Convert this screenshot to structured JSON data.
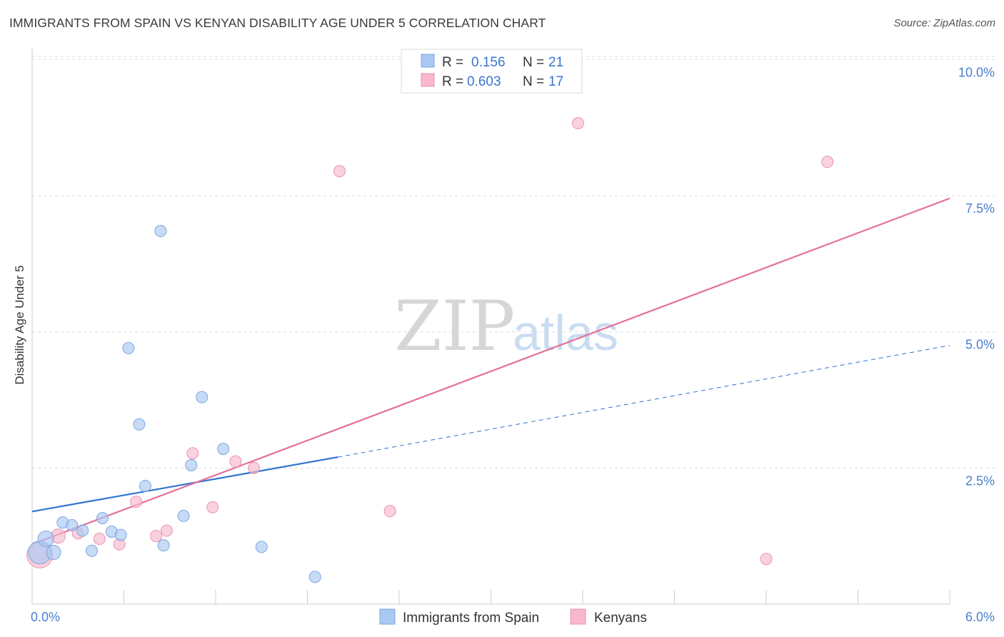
{
  "header": {
    "title": "IMMIGRANTS FROM SPAIN VS KENYAN DISABILITY AGE UNDER 5 CORRELATION CHART",
    "source": "Source: ZipAtlas.com"
  },
  "watermark": {
    "zip": "ZIP",
    "atlas": "atlas"
  },
  "stats": [
    {
      "r_label": "R =",
      "r_value": "0.156",
      "n_label": "N =",
      "n_value": "21",
      "color": "#a9c8f2"
    },
    {
      "r_label": "R =",
      "r_value": "0.603",
      "n_label": "N =",
      "n_value": "17",
      "color": "#f7b8cc"
    }
  ],
  "legend": [
    {
      "label": "Immigrants from Spain",
      "color": "#a9c8f2"
    },
    {
      "label": "Kenyans",
      "color": "#f7b8cc"
    }
  ],
  "colors": {
    "blue_fill": "#a9c8f2",
    "blue_stroke": "#7ea6de",
    "blue_line": "#2f74d0",
    "pink_fill": "#f7b8cc",
    "pink_stroke": "#eb94b0",
    "pink_line": "#e56f9a",
    "axis_text": "#4a7fd1",
    "grid": "#dddddd"
  },
  "chart_data": {
    "type": "scatter",
    "title": "IMMIGRANTS FROM SPAIN VS KENYAN DISABILITY AGE UNDER 5 CORRELATION CHART",
    "xlabel": "",
    "ylabel": "Disability Age Under 5",
    "xlim": [
      0,
      6.0
    ],
    "ylim": [
      0,
      10.2
    ],
    "x_tick_labels": [
      "0.0%",
      "6.0%"
    ],
    "y_ticks": [
      2.5,
      5.0,
      7.5,
      10.0
    ],
    "y_tick_labels": [
      "2.5%",
      "5.0%",
      "7.5%",
      "10.0%"
    ],
    "grid": true,
    "legend_position": "bottom",
    "series": [
      {
        "name": "Immigrants from Spain",
        "points": [
          {
            "x": 0.05,
            "y": 0.95,
            "size": 16
          },
          {
            "x": 0.09,
            "y": 1.2,
            "size": 11
          },
          {
            "x": 0.14,
            "y": 0.95,
            "size": 10
          },
          {
            "x": 0.2,
            "y": 1.5,
            "size": 8
          },
          {
            "x": 0.26,
            "y": 1.45,
            "size": 8
          },
          {
            "x": 0.33,
            "y": 1.35,
            "size": 8
          },
          {
            "x": 0.39,
            "y": 0.98,
            "size": 8
          },
          {
            "x": 0.46,
            "y": 1.58,
            "size": 8
          },
          {
            "x": 0.52,
            "y": 1.33,
            "size": 8
          },
          {
            "x": 0.58,
            "y": 1.27,
            "size": 8
          },
          {
            "x": 0.63,
            "y": 4.7,
            "size": 8
          },
          {
            "x": 0.7,
            "y": 3.3,
            "size": 8
          },
          {
            "x": 0.74,
            "y": 2.17,
            "size": 8
          },
          {
            "x": 0.84,
            "y": 6.85,
            "size": 8
          },
          {
            "x": 0.86,
            "y": 1.08,
            "size": 8
          },
          {
            "x": 0.99,
            "y": 1.62,
            "size": 8
          },
          {
            "x": 1.04,
            "y": 2.55,
            "size": 8
          },
          {
            "x": 1.11,
            "y": 3.8,
            "size": 8
          },
          {
            "x": 1.25,
            "y": 2.85,
            "size": 8
          },
          {
            "x": 1.5,
            "y": 1.05,
            "size": 8
          },
          {
            "x": 1.85,
            "y": 0.5,
            "size": 8
          }
        ],
        "trend": {
          "x": [
            0.0,
            2.0
          ],
          "y": [
            1.7,
            2.7
          ],
          "style": "solid"
        },
        "trend_extension": {
          "x": [
            2.0,
            6.0
          ],
          "y": [
            2.7,
            4.75
          ],
          "style": "dashed"
        }
      },
      {
        "name": "Kenyans",
        "points": [
          {
            "x": 0.05,
            "y": 0.9,
            "size": 18
          },
          {
            "x": 0.17,
            "y": 1.25,
            "size": 10
          },
          {
            "x": 0.3,
            "y": 1.3,
            "size": 8
          },
          {
            "x": 0.44,
            "y": 1.2,
            "size": 8
          },
          {
            "x": 0.57,
            "y": 1.1,
            "size": 8
          },
          {
            "x": 0.68,
            "y": 1.88,
            "size": 8
          },
          {
            "x": 0.81,
            "y": 1.25,
            "size": 8
          },
          {
            "x": 0.88,
            "y": 1.35,
            "size": 8
          },
          {
            "x": 1.05,
            "y": 2.77,
            "size": 8
          },
          {
            "x": 1.18,
            "y": 1.78,
            "size": 8
          },
          {
            "x": 1.33,
            "y": 2.62,
            "size": 8
          },
          {
            "x": 1.45,
            "y": 2.5,
            "size": 8
          },
          {
            "x": 2.01,
            "y": 7.95,
            "size": 8
          },
          {
            "x": 2.34,
            "y": 1.71,
            "size": 8
          },
          {
            "x": 3.57,
            "y": 8.83,
            "size": 8
          },
          {
            "x": 4.8,
            "y": 0.83,
            "size": 8
          },
          {
            "x": 5.2,
            "y": 8.12,
            "size": 8
          }
        ],
        "trend": {
          "x": [
            0.0,
            6.0
          ],
          "y": [
            1.1,
            7.45
          ],
          "style": "solid"
        }
      }
    ]
  }
}
